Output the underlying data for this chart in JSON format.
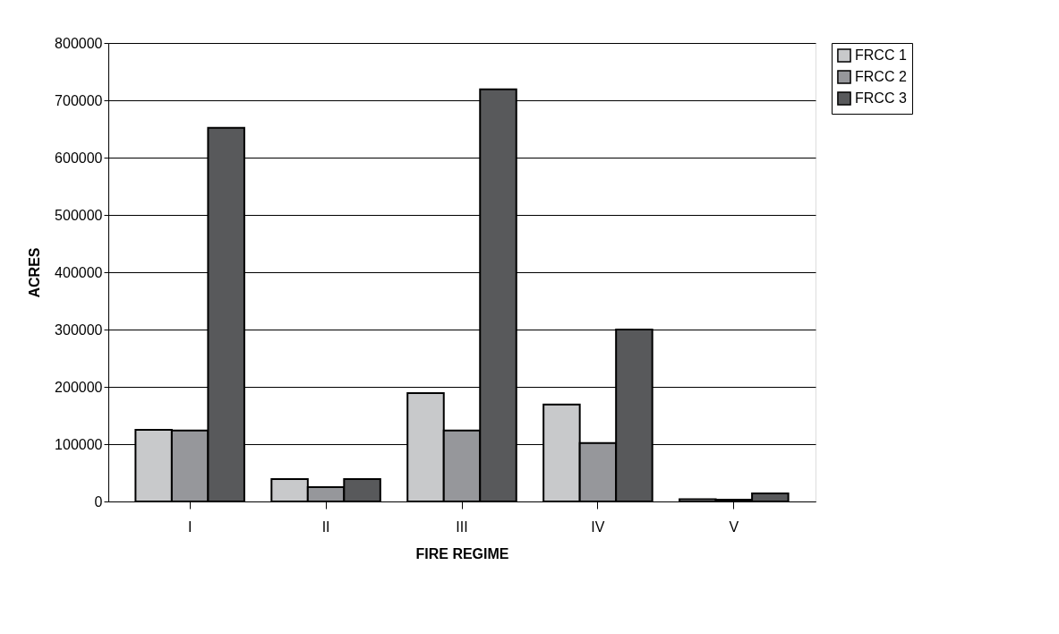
{
  "chart_data": {
    "type": "bar",
    "xlabel": "FIRE REGIME",
    "ylabel": "ACRES",
    "categories": [
      "I",
      "II",
      "III",
      "IV",
      "V"
    ],
    "series": [
      {
        "name": "FRCC 1",
        "color": "#c8c9cb",
        "values": [
          125000,
          39000,
          189000,
          169000,
          4000
        ]
      },
      {
        "name": "FRCC 2",
        "color": "#96979b",
        "values": [
          124000,
          25000,
          124000,
          102000,
          3000
        ]
      },
      {
        "name": "FRCC 3",
        "color": "#58595b",
        "values": [
          652000,
          39000,
          719000,
          300000,
          14000
        ]
      }
    ],
    "ylim": [
      0,
      800000
    ],
    "yticks": [
      0,
      100000,
      200000,
      300000,
      400000,
      500000,
      600000,
      700000,
      800000
    ],
    "grid": "y",
    "legend": "right"
  }
}
